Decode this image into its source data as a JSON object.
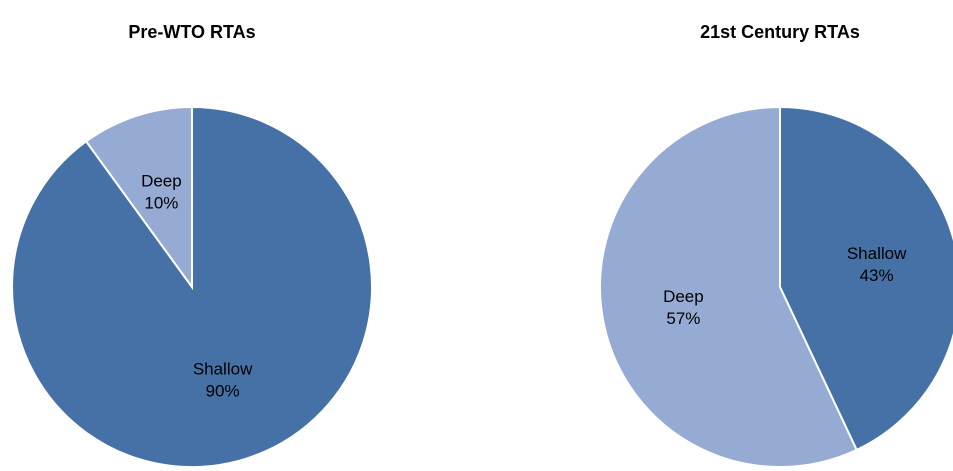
{
  "chart_data": [
    {
      "type": "pie",
      "title": "Pre-WTO RTAs",
      "categories": [
        "Shallow",
        "Deep"
      ],
      "values": [
        90,
        10
      ],
      "value_labels": [
        "90%",
        "10%"
      ],
      "colors": [
        "#4571a6",
        "#95abd3"
      ]
    },
    {
      "type": "pie",
      "title": "21st Century RTAs",
      "categories": [
        "Shallow",
        "Deep"
      ],
      "values": [
        43,
        57
      ],
      "value_labels": [
        "43%",
        "57%"
      ],
      "colors": [
        "#4571a6",
        "#95abd3"
      ]
    }
  ]
}
